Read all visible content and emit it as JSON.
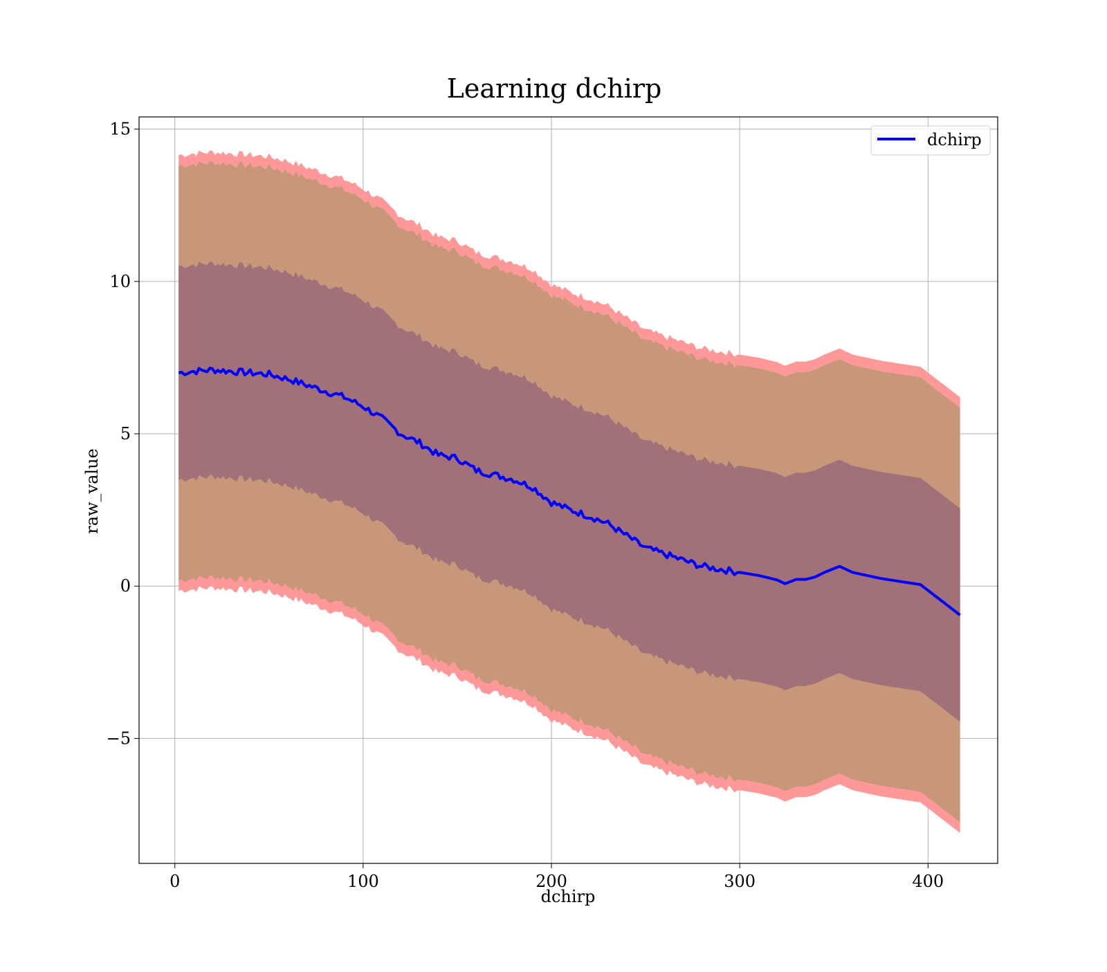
{
  "chart_data": {
    "type": "area",
    "title": "Learning dchirp",
    "xlabel": "dchirp",
    "ylabel": "raw_value",
    "xlim": [
      -19,
      437
    ],
    "ylim": [
      -9.1,
      15.4
    ],
    "x_ticks": [
      0,
      100,
      200,
      300,
      400
    ],
    "x_tick_labels": [
      "0",
      "100",
      "200",
      "300",
      "400"
    ],
    "y_ticks": [
      -5,
      0,
      5,
      10,
      15
    ],
    "y_tick_labels": [
      "−5",
      "0",
      "5",
      "10",
      "15"
    ],
    "grid": true,
    "legend_position": "top-right",
    "x": [
      2,
      10,
      20,
      30,
      40,
      50,
      60,
      70,
      80,
      90,
      100,
      110,
      120,
      130,
      140,
      150,
      160,
      170,
      180,
      190,
      200,
      210,
      220,
      230,
      240,
      250,
      260,
      270,
      280,
      290,
      300,
      310,
      320,
      324,
      330,
      335,
      340,
      345,
      353,
      360,
      375,
      396,
      417
    ],
    "series": [
      {
        "name": "dchirp",
        "color": "#0000ff",
        "values": [
          7.0,
          7.05,
          7.1,
          7.05,
          7.0,
          6.95,
          6.8,
          6.6,
          6.4,
          6.2,
          5.9,
          5.5,
          5.0,
          4.7,
          4.3,
          4.2,
          3.8,
          3.65,
          3.5,
          3.25,
          2.75,
          2.5,
          2.3,
          2.05,
          1.65,
          1.25,
          1.05,
          0.85,
          0.65,
          0.55,
          0.45,
          0.35,
          0.2,
          0.08,
          0.22,
          0.22,
          0.3,
          0.45,
          0.65,
          0.45,
          0.25,
          0.05,
          -0.95
        ]
      }
    ],
    "bands": [
      {
        "color": "#ff9999",
        "sigma": 7.15
      },
      {
        "color": "#c8977a",
        "sigma": 6.8
      },
      {
        "color": "#a17078",
        "sigma": 3.5
      }
    ]
  }
}
